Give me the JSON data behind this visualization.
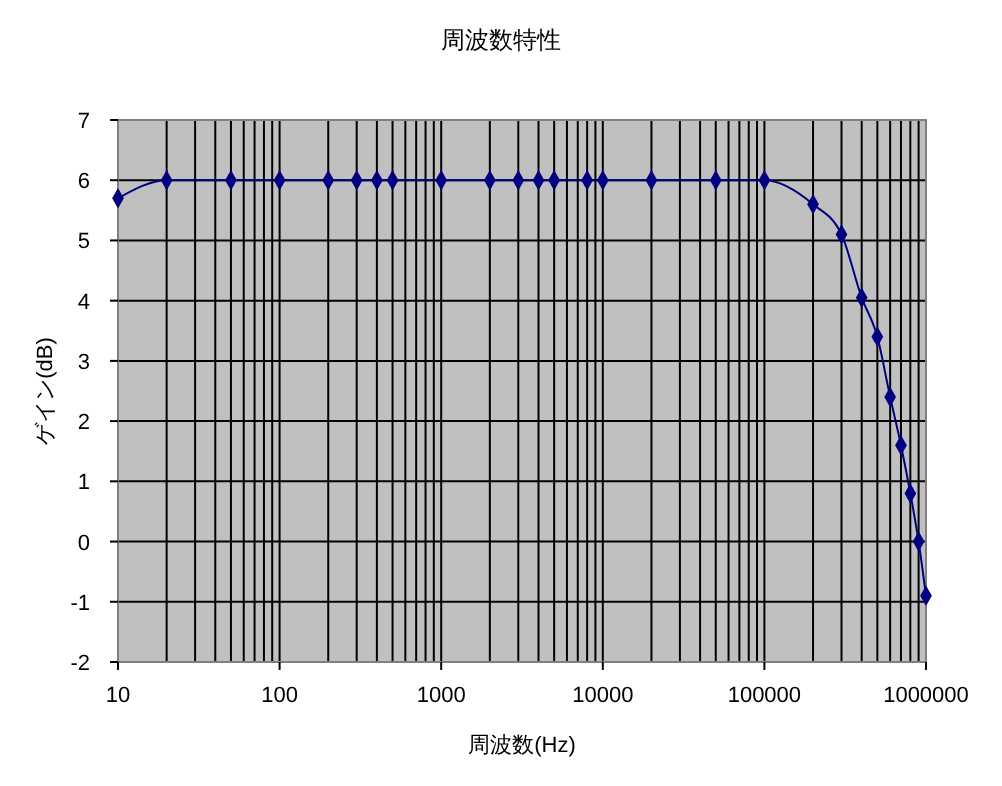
{
  "chart_data": {
    "type": "line",
    "title": "周波数特性",
    "xlabel": "周波数(Hz)",
    "ylabel": "ゲイン(dB)",
    "log": "x",
    "grid": true,
    "marker": "diamond",
    "x": [
      10,
      20,
      50,
      100,
      200,
      300,
      400,
      500,
      1000,
      2000,
      3000,
      4000,
      5000,
      8000,
      10000,
      20000,
      50000,
      100000,
      200000,
      300000,
      400000,
      500000,
      600000,
      700000,
      800000,
      900000,
      1000000
    ],
    "series": [
      {
        "color": "#000080",
        "values": [
          5.7,
          6,
          6,
          6,
          6,
          6,
          6,
          6,
          6,
          6,
          6,
          6,
          6,
          6,
          6,
          6,
          6,
          6,
          5.6,
          5.1,
          4.05,
          3.4,
          2.4,
          1.6,
          0.8,
          0,
          -0.9
        ]
      }
    ],
    "xlim": [
      10,
      1000000
    ],
    "xticks": [
      10,
      100,
      1000,
      10000,
      100000,
      1000000
    ],
    "ylim": [
      -2,
      7
    ],
    "yticks": [
      -2,
      -1,
      0,
      1,
      2,
      3,
      4,
      5,
      6,
      7
    ]
  }
}
